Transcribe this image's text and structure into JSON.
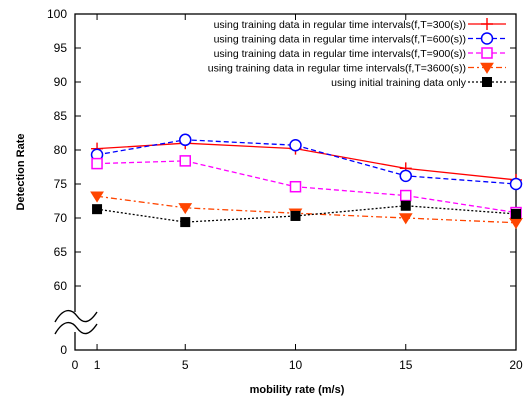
{
  "chart_data": {
    "type": "line",
    "title": "",
    "xlabel": "mobility rate (m/s)",
    "ylabel": "Detection Rate",
    "x_ticks": [
      "0",
      "1",
      "5",
      "10",
      "15",
      "20"
    ],
    "y_ticks": [
      "0",
      "60",
      "65",
      "70",
      "75",
      "80",
      "85",
      "90",
      "95",
      "100"
    ],
    "axis_break": "y between 0 and 60",
    "xlim": [
      0,
      20
    ],
    "ylim": [
      55,
      100
    ],
    "grid": false,
    "legend_position": "top-right",
    "x": [
      1,
      5,
      10,
      15,
      20
    ],
    "series": [
      {
        "name": "using training data in regular time intervals(f,T=300(s))",
        "values": [
          80.2,
          81.0,
          80.2,
          77.3,
          75.6
        ],
        "color": "#ff0000",
        "marker": "plus",
        "line": "solid"
      },
      {
        "name": "using training data in regular time intervals(f,T=600(s))",
        "values": [
          79.3,
          81.5,
          80.7,
          76.2,
          75.0
        ],
        "color": "#0000ff",
        "marker": "circle",
        "line": "dashed"
      },
      {
        "name": "using training data in regular time intervals(f,T=900(s))",
        "values": [
          78.0,
          78.4,
          74.6,
          73.3,
          70.8
        ],
        "color": "#ff00ff",
        "marker": "square-open",
        "line": "dashed"
      },
      {
        "name": "using training data in regular time intervals(f,T=3600(s))",
        "values": [
          73.2,
          71.5,
          70.7,
          70.0,
          69.3
        ],
        "color": "#ff4500",
        "marker": "triangle-down",
        "line": "dashdot"
      },
      {
        "name": "using initial training data only",
        "values": [
          71.3,
          69.4,
          70.3,
          71.8,
          70.6
        ],
        "color": "#000000",
        "marker": "square-filled",
        "line": "dotted"
      }
    ]
  }
}
